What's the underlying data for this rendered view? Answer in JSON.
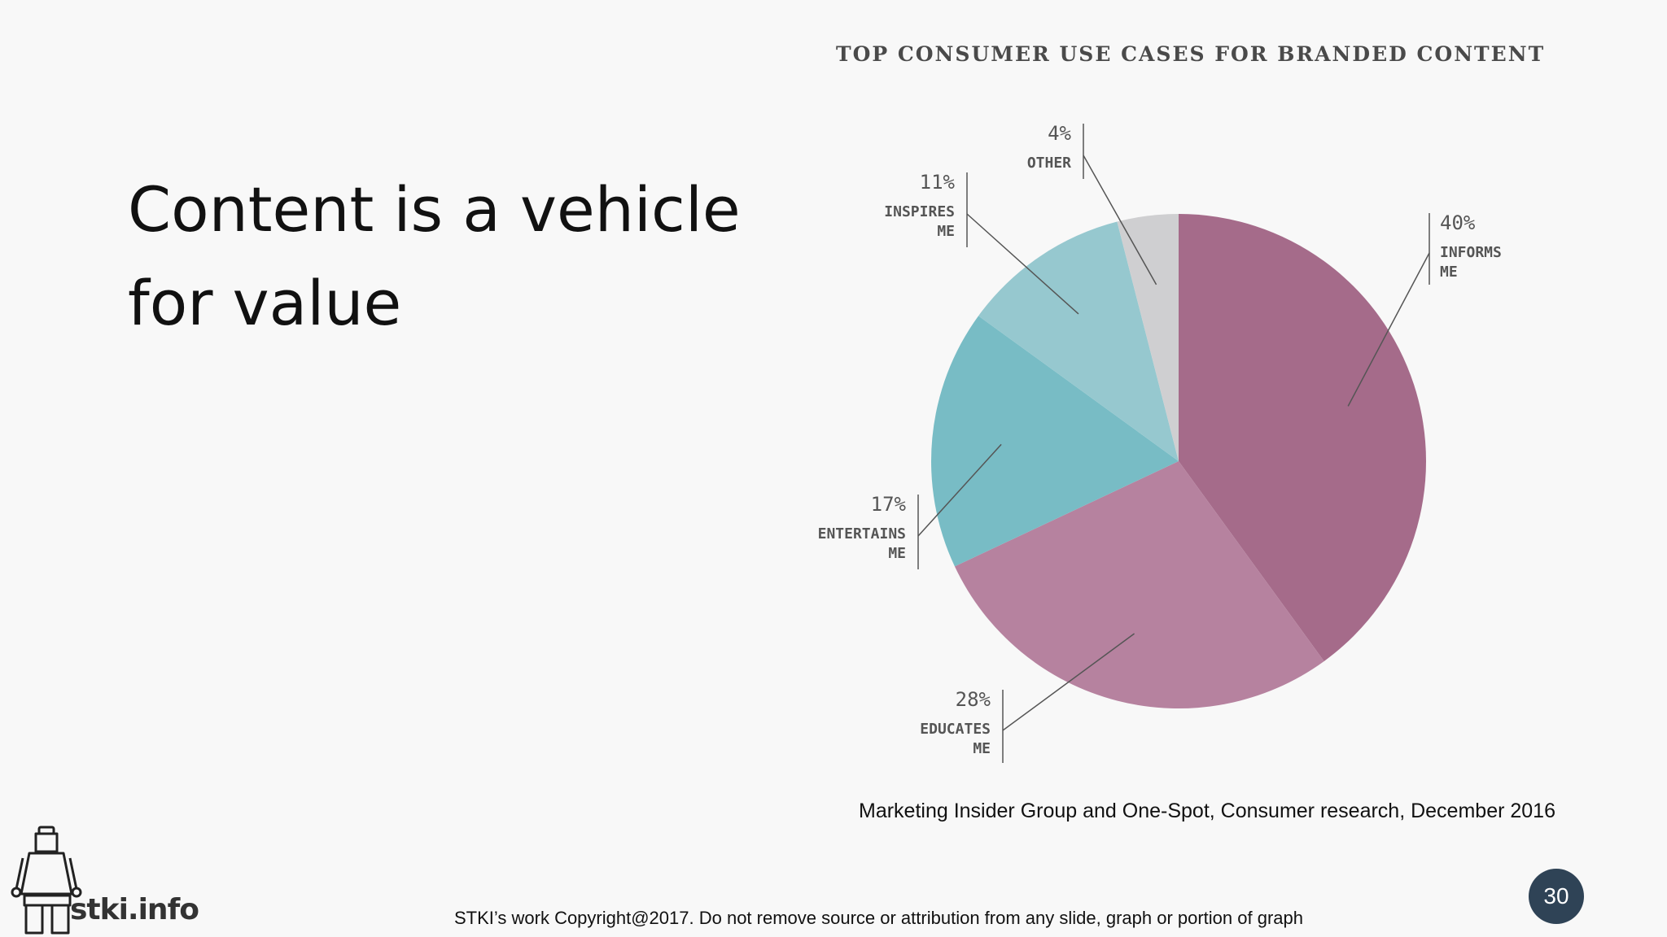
{
  "slide": {
    "title_line1": "Content is a vehicle",
    "title_line2": "for value",
    "source": "Marketing Insider Group and One-Spot, Consumer research, December 2016",
    "copyright": "STKI’s work Copyright@2017. Do not remove source or attribution from any slide, graph or portion of graph",
    "page_number": "30",
    "logo_text": "stki.info"
  },
  "chart_data": {
    "type": "pie",
    "title": "TOP CONSUMER USE CASES FOR BRANDED CONTENT",
    "slices": [
      {
        "pct_label": "40%",
        "line1": "INFORMS",
        "line2": "ME",
        "value": 40,
        "color": "#a56b8a"
      },
      {
        "pct_label": "28%",
        "line1": "EDUCATES",
        "line2": "ME",
        "value": 28,
        "color": "#b6829f"
      },
      {
        "pct_label": "17%",
        "line1": "ENTERTAINS",
        "line2": "ME",
        "value": 17,
        "color": "#78bcc5"
      },
      {
        "pct_label": "11%",
        "line1": "INSPIRES",
        "line2": "ME",
        "value": 11,
        "color": "#96c8cf"
      },
      {
        "pct_label": "4%",
        "line1": "OTHER",
        "line2": "",
        "value": 4,
        "color": "#cfcfd1"
      }
    ]
  }
}
